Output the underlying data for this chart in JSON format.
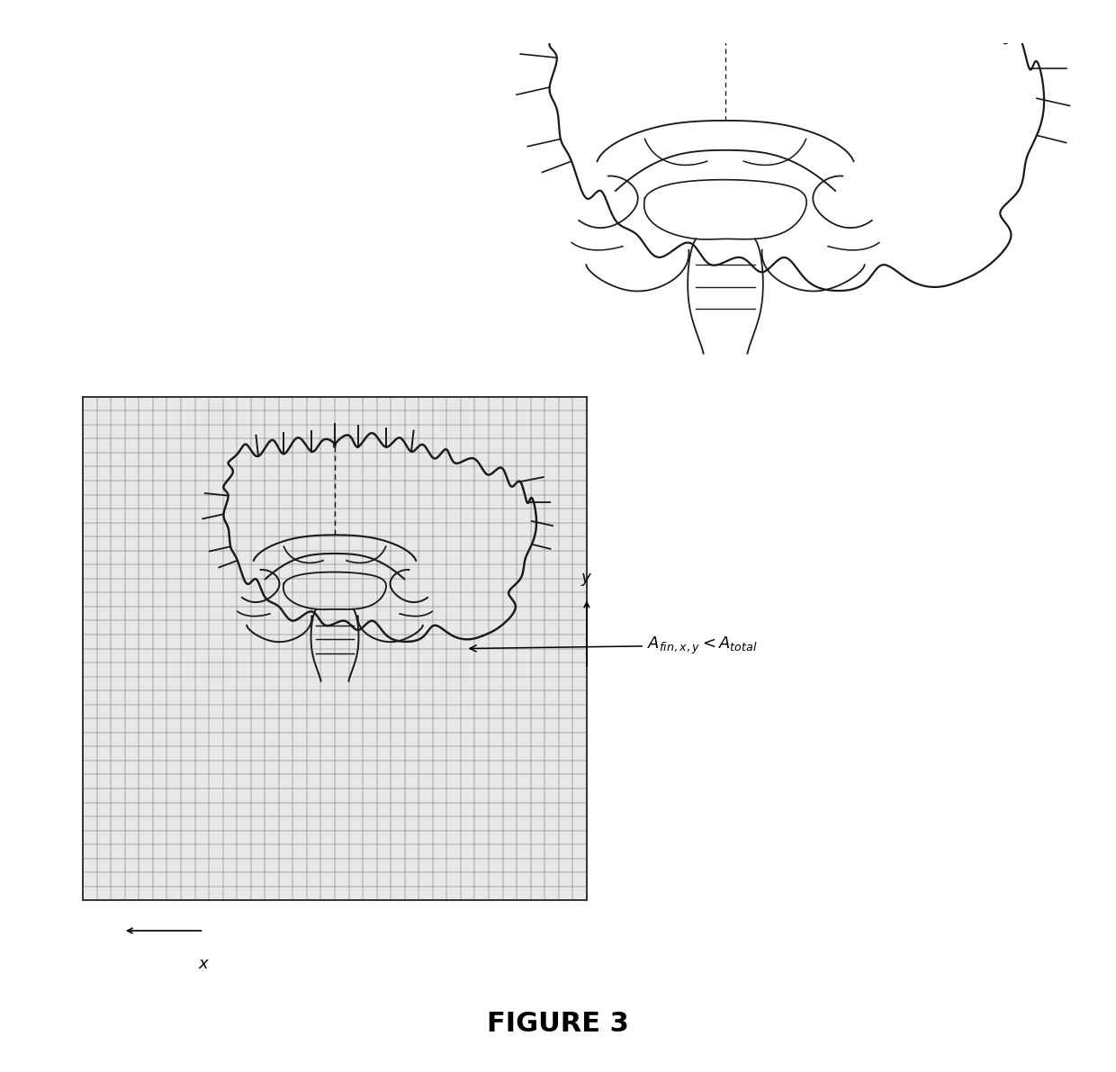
{
  "figure_width": 12.4,
  "figure_height": 11.91,
  "bg_color": "#ffffff",
  "title": "FIGURE 3",
  "title_fontsize": 22,
  "title_fontweight": "bold",
  "brain_color": "#1a1a1a",
  "grid_color": "#444444",
  "grid_lw": 0.35,
  "brain_lw": 1.6,
  "inner_lw": 1.3,
  "annotation_fontsize": 13,
  "grid_bg": "#e8e8e8"
}
